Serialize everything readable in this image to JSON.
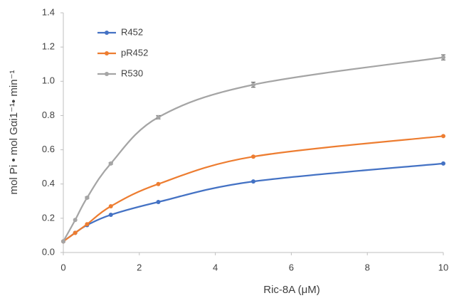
{
  "chart_data": {
    "type": "line",
    "x_label": "Ric-8A (μM)",
    "y_label": "mol Pi • mol Gαi1⁻¹• min⁻¹",
    "x": [
      0,
      0.3125,
      0.625,
      1.25,
      2.5,
      5,
      10
    ],
    "series": [
      {
        "name": "R452",
        "color": "#4472c4",
        "values": [
          0.065,
          0.115,
          0.16,
          0.22,
          0.295,
          0.415,
          0.52
        ]
      },
      {
        "name": "pR452",
        "color": "#ed7d31",
        "values": [
          0.065,
          0.115,
          0.165,
          0.27,
          0.4,
          0.56,
          0.68
        ]
      },
      {
        "name": "R530",
        "color": "#a5a5a5",
        "values": [
          0.065,
          0.19,
          0.32,
          0.52,
          0.79,
          0.98,
          1.14
        ],
        "errors": [
          0,
          0,
          0.005,
          0.005,
          0.01,
          0.015,
          0.015
        ]
      }
    ],
    "xlim": [
      0,
      10
    ],
    "xticks": [
      0,
      2,
      4,
      6,
      8,
      10
    ],
    "ylim": [
      0,
      1.4
    ],
    "yticks": [
      {
        "value": 0,
        "label": "0.0"
      },
      0.2,
      0.4,
      0.6,
      0.8,
      {
        "value": 1,
        "label": "1.0"
      },
      1.2,
      1.4
    ],
    "grid": false,
    "legend": "upper-left"
  }
}
